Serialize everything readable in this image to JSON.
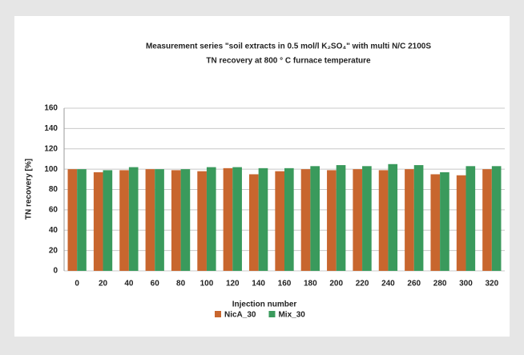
{
  "chart_data": {
    "type": "bar",
    "title": "Measurement series \"soil extracts in 0.5 mol/l K₂SO₄\" with multi  N/C 2100S",
    "subtitle": "TN recovery at 800 ° C furnace temperature",
    "x_label": "Injection number",
    "y_label": "TN recovery [%]",
    "categories": [
      0,
      20,
      40,
      60,
      80,
      100,
      120,
      140,
      160,
      180,
      200,
      220,
      240,
      260,
      280,
      300,
      320
    ],
    "series": [
      {
        "name": "NicA_30",
        "color": "#c8662e",
        "values": [
          100,
          97,
          99,
          100,
          99,
          98,
          101,
          95,
          98,
          100,
          99,
          100,
          99,
          100,
          95,
          94,
          100
        ]
      },
      {
        "name": "Mix_30",
        "color": "#3a9a5c",
        "values": [
          100,
          99,
          102,
          100,
          100,
          102,
          102,
          101,
          101,
          103,
          104,
          103,
          105,
          104,
          97,
          103,
          103
        ]
      }
    ],
    "ylim": [
      0,
      160
    ],
    "yticks": [
      0,
      20,
      40,
      60,
      80,
      100,
      120,
      140,
      160
    ],
    "grid": true,
    "legend": "bottom"
  }
}
